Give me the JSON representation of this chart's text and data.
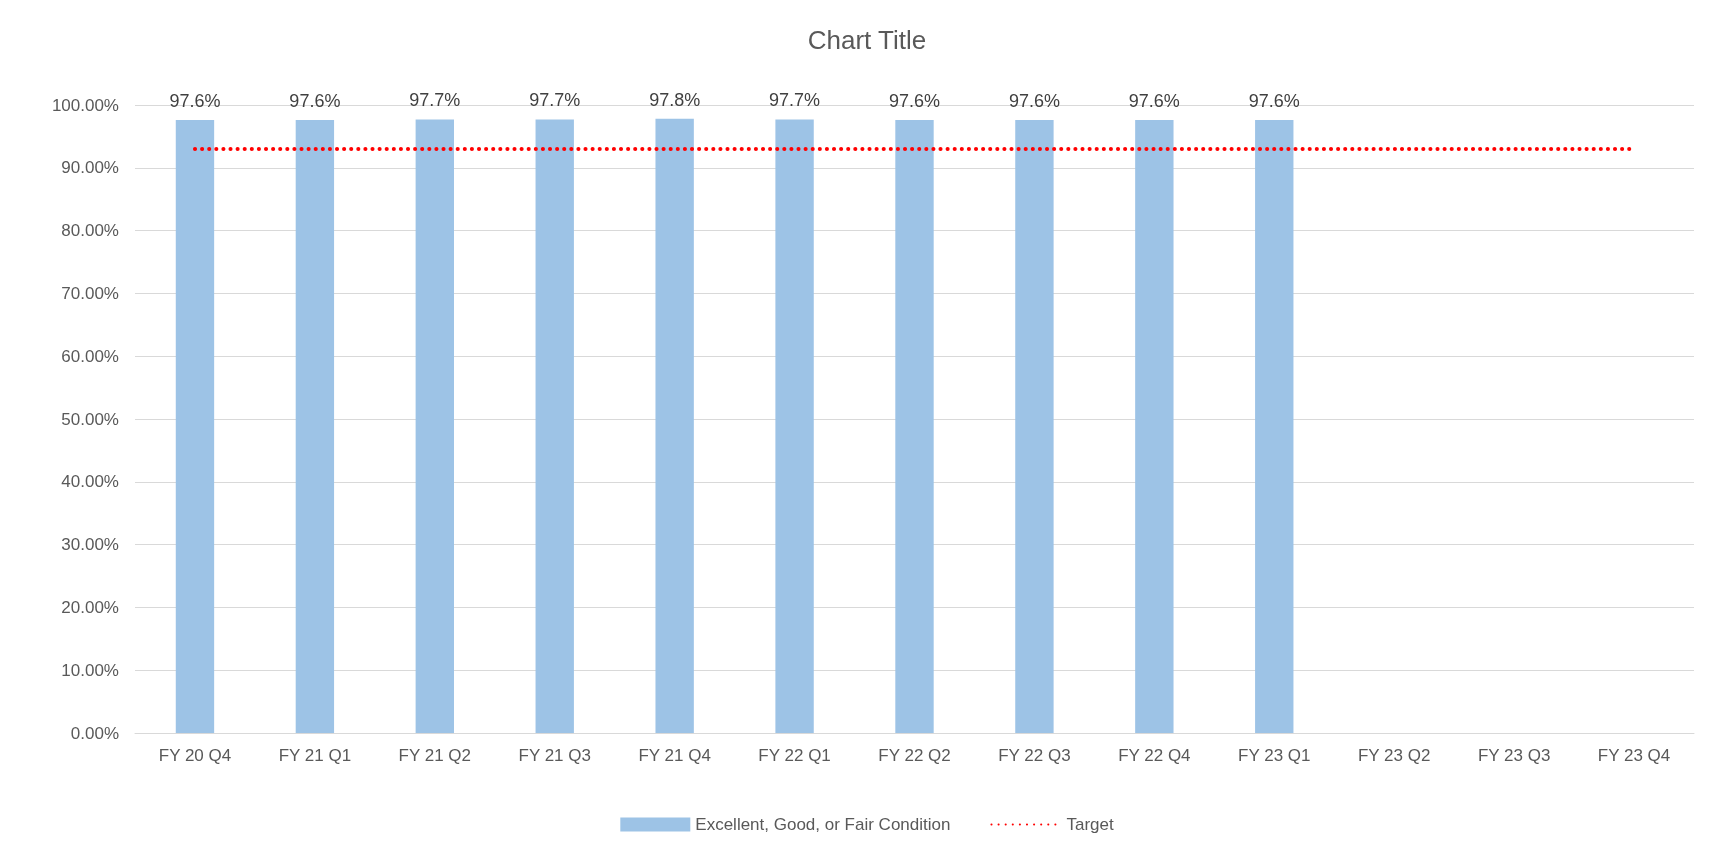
{
  "chart_data": {
    "type": "bar",
    "title": "Chart Title",
    "categories": [
      "FY 20 Q4",
      "FY 21 Q1",
      "FY 21 Q2",
      "FY 21 Q3",
      "FY 21 Q4",
      "FY 22 Q1",
      "FY 22 Q2",
      "FY 22 Q3",
      "FY 22 Q4",
      "FY 23 Q1",
      "FY 23 Q2",
      "FY 23 Q3",
      "FY 23 Q4"
    ],
    "series": [
      {
        "name": "Excellent, Good, or Fair Condition",
        "color": "#9dc3e6",
        "values": [
          97.6,
          97.6,
          97.7,
          97.7,
          97.8,
          97.7,
          97.6,
          97.6,
          97.6,
          97.6,
          null,
          null,
          null
        ],
        "value_labels": [
          "97.6%",
          "97.6%",
          "97.7%",
          "97.7%",
          "97.8%",
          "97.7%",
          "97.6%",
          "97.6%",
          "97.6%",
          "97.6%",
          null,
          null,
          null
        ]
      },
      {
        "name": "Target",
        "type": "line",
        "color": "#ff0000",
        "line_style": "dotted",
        "marker": "none",
        "values": [
          93,
          93,
          93,
          93,
          93,
          93,
          93,
          93,
          93,
          93,
          93,
          93,
          93
        ]
      }
    ],
    "ylim": [
      0,
      100
    ],
    "yticks": [
      {
        "value": 0,
        "label": "0.00%"
      },
      {
        "value": 10,
        "label": "10.00%"
      },
      {
        "value": 20,
        "label": "20.00%"
      },
      {
        "value": 30,
        "label": "30.00%"
      },
      {
        "value": 40,
        "label": "40.00%"
      },
      {
        "value": 50,
        "label": "50.00%"
      },
      {
        "value": 60,
        "label": "60.00%"
      },
      {
        "value": 70,
        "label": "70.00%"
      },
      {
        "value": 80,
        "label": "80.00%"
      },
      {
        "value": 90,
        "label": "90.00%"
      },
      {
        "value": 100,
        "label": "100.00%"
      }
    ],
    "grid": "y",
    "legend": "bottom"
  }
}
